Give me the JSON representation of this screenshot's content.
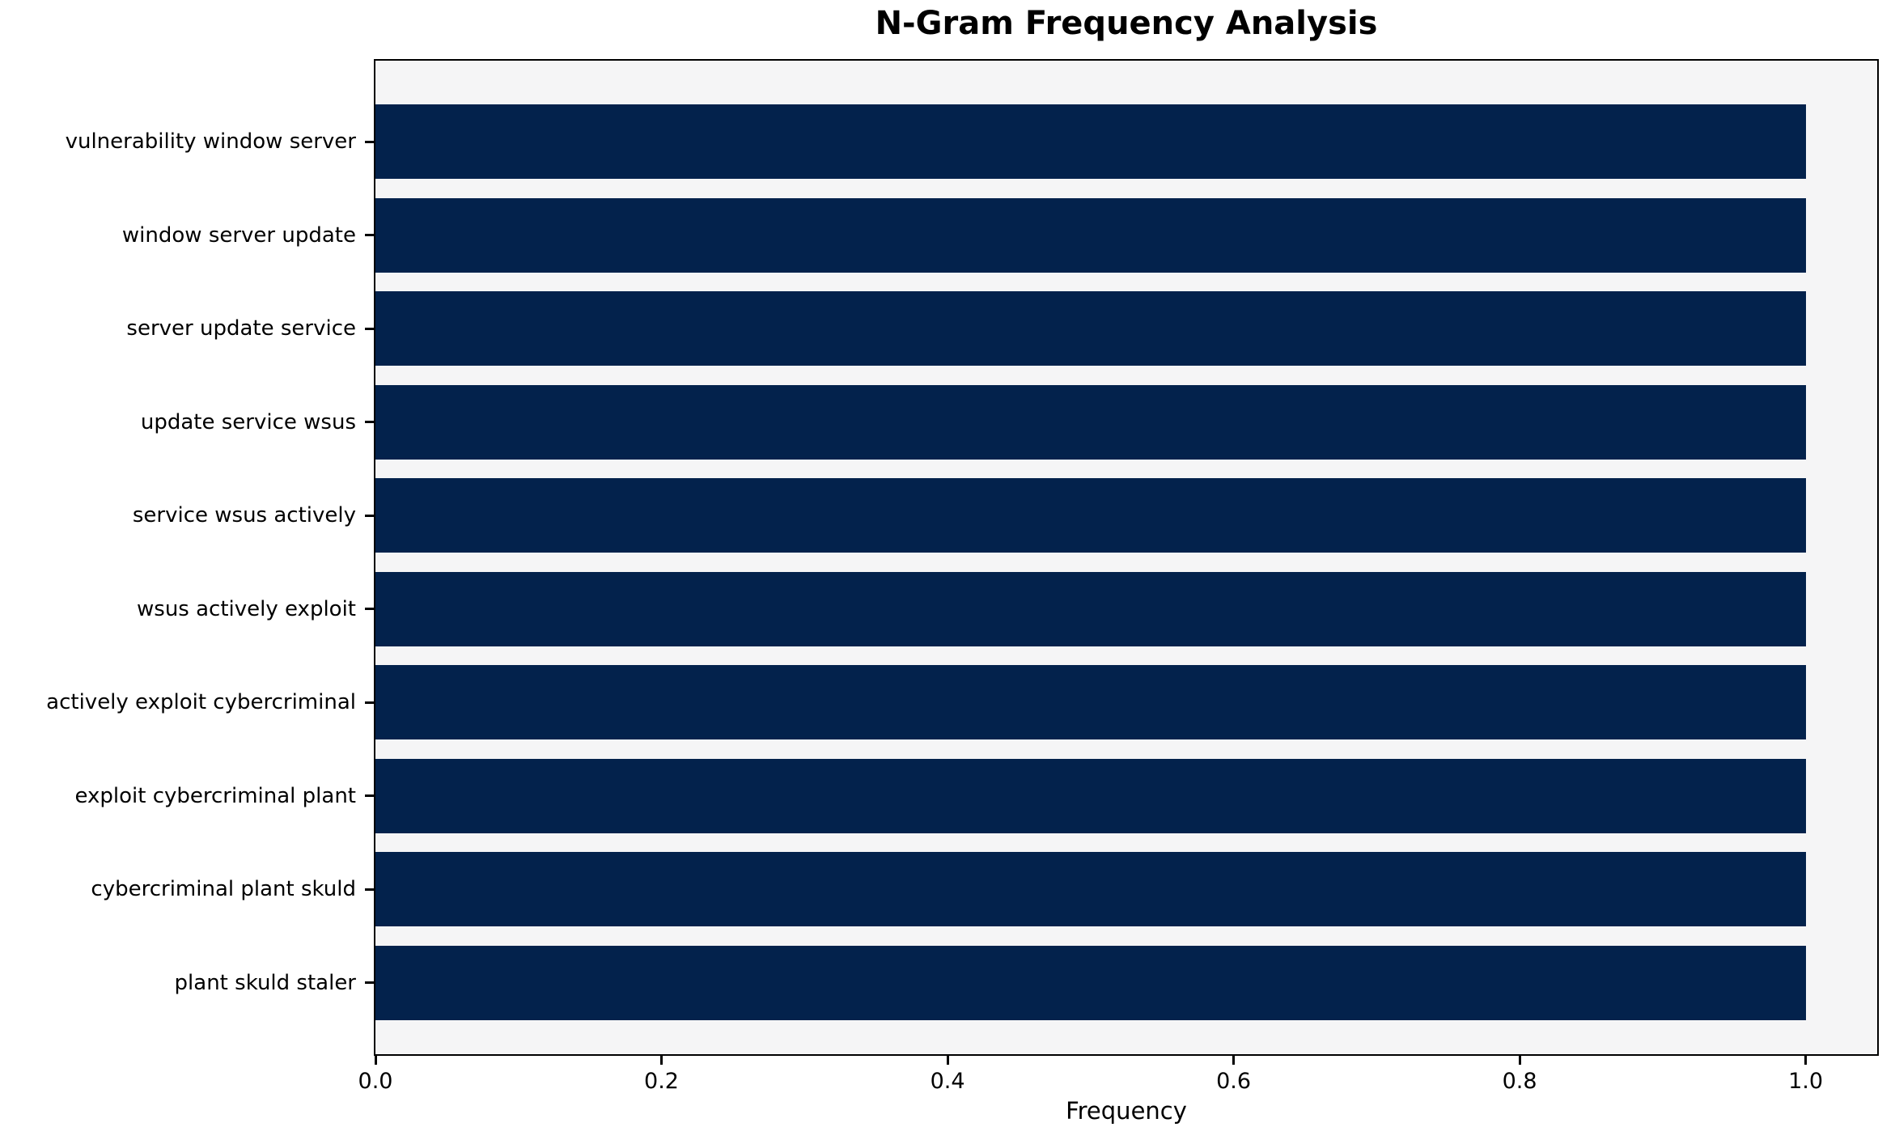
{
  "chart_data": {
    "type": "bar",
    "orientation": "horizontal",
    "title": "N-Gram Frequency Analysis",
    "xlabel": "Frequency",
    "ylabel": "",
    "categories": [
      "vulnerability window server",
      "window server update",
      "server update service",
      "update service wsus",
      "service wsus actively",
      "wsus actively exploit",
      "actively exploit cybercriminal",
      "exploit cybercriminal plant",
      "cybercriminal plant skuld",
      "plant skuld staler"
    ],
    "values": [
      1.0,
      1.0,
      1.0,
      1.0,
      1.0,
      1.0,
      1.0,
      1.0,
      1.0,
      1.0
    ],
    "xlim": [
      0,
      1.05
    ],
    "x_ticks": [
      0.0,
      0.2,
      0.4,
      0.6,
      0.8,
      1.0
    ],
    "x_tick_labels": [
      "0.0",
      "0.2",
      "0.4",
      "0.6",
      "0.8",
      "1.0"
    ],
    "grid": false,
    "legend": null,
    "bar_color": "#03224c",
    "plot_background": "#f5f5f6",
    "figure_background": "#ffffff",
    "spine_color": "#000000"
  }
}
